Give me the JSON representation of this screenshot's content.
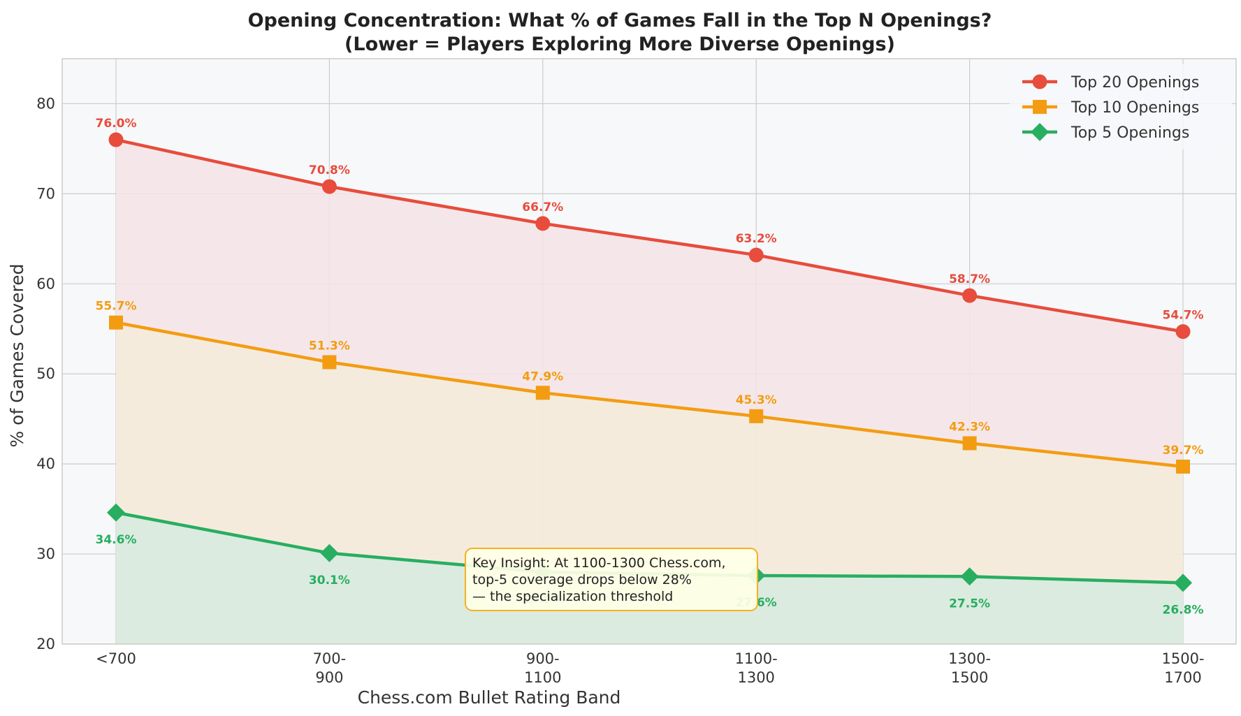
{
  "chart_data": {
    "type": "line",
    "title_lines": [
      "Opening Concentration: What % of Games Fall in the Top N Openings?",
      "(Lower = Players Exploring More Diverse Openings)"
    ],
    "xlabel": "Chess.com Bullet Rating Band",
    "ylabel": "% of Games Covered",
    "categories": [
      "<700",
      "700-\n900",
      "900-\n1100",
      "1100-\n1300",
      "1300-\n1500",
      "1500-\n1700"
    ],
    "ylim": [
      20,
      85
    ],
    "yticks": [
      20,
      30,
      40,
      50,
      60,
      70,
      80
    ],
    "grid": true,
    "legend_position": "top-right",
    "series": [
      {
        "name": "Top 20 Openings",
        "values": [
          76.0,
          70.8,
          66.7,
          63.2,
          58.7,
          54.7
        ],
        "labels": [
          "76.0%",
          "70.8%",
          "66.7%",
          "63.2%",
          "58.7%",
          "54.7%"
        ],
        "color": "#e74c3c",
        "fill": "#f5e4e5",
        "marker": "circle",
        "label_position": "above"
      },
      {
        "name": "Top 10 Openings",
        "values": [
          55.7,
          51.3,
          47.9,
          45.3,
          42.3,
          39.7
        ],
        "labels": [
          "55.7%",
          "51.3%",
          "47.9%",
          "45.3%",
          "42.3%",
          "39.7%"
        ],
        "color": "#f39c12",
        "fill": "#f5ebdb",
        "marker": "square",
        "label_position": "above"
      },
      {
        "name": "Top 5 Openings",
        "values": [
          34.6,
          30.1,
          28.0,
          27.6,
          27.5,
          26.8
        ],
        "labels": [
          "34.6%",
          "30.1%",
          "28.0%",
          "27.6%",
          "27.5%",
          "26.8%"
        ],
        "color": "#27ae60",
        "fill": "#d6ebe1",
        "marker": "diamond",
        "label_position": "below"
      }
    ],
    "annotation": {
      "lines": [
        "Key Insight: At 1100-1300 Chess.com,",
        "top-5 coverage drops below 28%",
        "— the specialization threshold"
      ],
      "box_fill": "#ffffe6",
      "box_stroke": "#f5b120"
    },
    "plot_background": "#f7f8fa",
    "grid_color": "#cccccc"
  }
}
